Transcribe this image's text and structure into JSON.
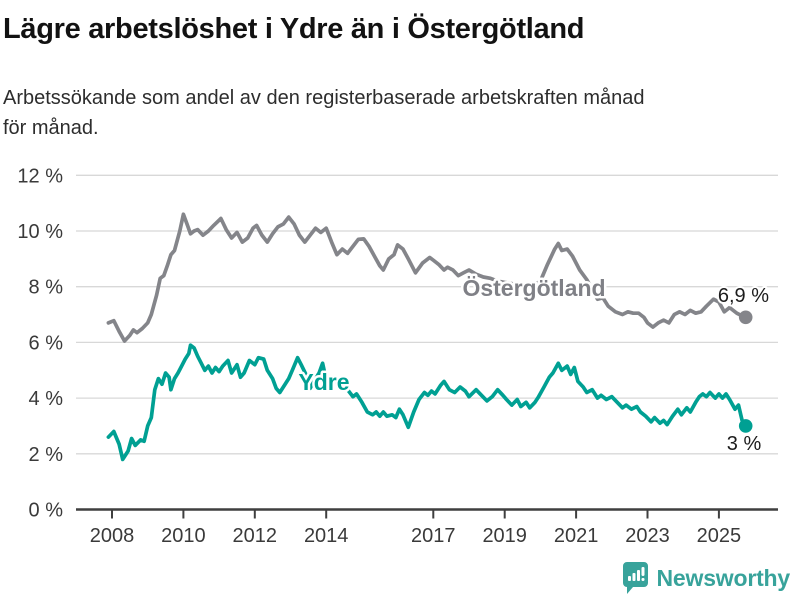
{
  "header": {
    "title": "Lägre arbetslöshet i Ydre än i Östergötland",
    "subtitle": "Arbetssökande som andel av den registerbaserade arbetskraften månad\nför månad."
  },
  "footer": {
    "brand": "Newsworthy"
  },
  "colors": {
    "ostergotland_line": "#84858a",
    "ydre_line": "#00a093",
    "grid": "#d8d8d8",
    "axis": "#3f3f3f",
    "brand_teal": "#38a39b"
  },
  "chart_data": {
    "type": "line",
    "title": "Lägre arbetslöshet i Ydre än i Östergötland",
    "subtitle": "Arbetssökande som andel av den registerbaserade arbetskraften månad för månad.",
    "unit": "%",
    "ylim": [
      0,
      12
    ],
    "xlim": [
      2007.9,
      2026.2
    ],
    "grid": "horizontal",
    "legend_position": "inline-labels",
    "y_ticks": [
      0,
      2,
      4,
      6,
      8,
      10,
      12
    ],
    "y_tick_suffix": " %",
    "x_ticks": [
      2008,
      2010,
      2012,
      2014,
      2017,
      2019,
      2021,
      2023,
      2025
    ],
    "series": [
      {
        "name": "Östergötland",
        "color": "#84858a",
        "end_label": "6,9 %",
        "end_value": 6.9,
        "points": [
          [
            2007.9,
            6.7
          ],
          [
            2008.05,
            6.78
          ],
          [
            2008.2,
            6.4
          ],
          [
            2008.35,
            6.05
          ],
          [
            2008.5,
            6.25
          ],
          [
            2008.6,
            6.45
          ],
          [
            2008.7,
            6.35
          ],
          [
            2008.85,
            6.5
          ],
          [
            2009.0,
            6.7
          ],
          [
            2009.1,
            7.0
          ],
          [
            2009.25,
            7.7
          ],
          [
            2009.35,
            8.3
          ],
          [
            2009.45,
            8.4
          ],
          [
            2009.55,
            8.75
          ],
          [
            2009.65,
            9.15
          ],
          [
            2009.75,
            9.3
          ],
          [
            2009.9,
            10.0
          ],
          [
            2010.0,
            10.6
          ],
          [
            2010.1,
            10.25
          ],
          [
            2010.2,
            9.9
          ],
          [
            2010.3,
            10.0
          ],
          [
            2010.4,
            10.05
          ],
          [
            2010.55,
            9.85
          ],
          [
            2010.7,
            10.0
          ],
          [
            2010.85,
            10.2
          ],
          [
            2011.05,
            10.45
          ],
          [
            2011.2,
            10.05
          ],
          [
            2011.35,
            9.75
          ],
          [
            2011.5,
            9.95
          ],
          [
            2011.65,
            9.6
          ],
          [
            2011.8,
            9.75
          ],
          [
            2011.95,
            10.1
          ],
          [
            2012.05,
            10.2
          ],
          [
            2012.2,
            9.85
          ],
          [
            2012.35,
            9.6
          ],
          [
            2012.5,
            9.9
          ],
          [
            2012.65,
            10.15
          ],
          [
            2012.8,
            10.25
          ],
          [
            2012.95,
            10.5
          ],
          [
            2013.1,
            10.25
          ],
          [
            2013.25,
            9.85
          ],
          [
            2013.4,
            9.6
          ],
          [
            2013.55,
            9.85
          ],
          [
            2013.7,
            10.1
          ],
          [
            2013.85,
            9.95
          ],
          [
            2014.0,
            10.1
          ],
          [
            2014.15,
            9.6
          ],
          [
            2014.3,
            9.15
          ],
          [
            2014.45,
            9.35
          ],
          [
            2014.6,
            9.2
          ],
          [
            2014.75,
            9.45
          ],
          [
            2014.9,
            9.7
          ],
          [
            2015.05,
            9.72
          ],
          [
            2015.2,
            9.45
          ],
          [
            2015.35,
            9.1
          ],
          [
            2015.5,
            8.75
          ],
          [
            2015.6,
            8.6
          ],
          [
            2015.75,
            9.0
          ],
          [
            2015.9,
            9.15
          ],
          [
            2016.0,
            9.5
          ],
          [
            2016.15,
            9.35
          ],
          [
            2016.3,
            9.0
          ],
          [
            2016.5,
            8.5
          ],
          [
            2016.7,
            8.85
          ],
          [
            2016.9,
            9.05
          ],
          [
            2017.0,
            8.95
          ],
          [
            2017.15,
            8.8
          ],
          [
            2017.3,
            8.6
          ],
          [
            2017.4,
            8.7
          ],
          [
            2017.55,
            8.6
          ],
          [
            2017.7,
            8.4
          ],
          [
            2017.85,
            8.5
          ],
          [
            2018.0,
            8.6
          ],
          [
            2018.2,
            8.45
          ],
          [
            2018.4,
            8.35
          ],
          [
            2018.6,
            8.3
          ],
          [
            2018.8,
            8.2
          ],
          [
            2019.0,
            8.15
          ],
          [
            2019.25,
            8.1
          ],
          [
            2019.5,
            8.05
          ],
          [
            2019.75,
            8.0
          ],
          [
            2020.0,
            8.2
          ],
          [
            2020.2,
            8.8
          ],
          [
            2020.4,
            9.35
          ],
          [
            2020.5,
            9.55
          ],
          [
            2020.6,
            9.3
          ],
          [
            2020.75,
            9.35
          ],
          [
            2020.9,
            9.1
          ],
          [
            2021.1,
            8.6
          ],
          [
            2021.3,
            8.25
          ],
          [
            2021.5,
            7.8
          ],
          [
            2021.6,
            7.55
          ],
          [
            2021.75,
            7.6
          ],
          [
            2021.9,
            7.3
          ],
          [
            2022.1,
            7.1
          ],
          [
            2022.3,
            7.0
          ],
          [
            2022.45,
            7.1
          ],
          [
            2022.6,
            7.05
          ],
          [
            2022.75,
            7.05
          ],
          [
            2022.9,
            6.9
          ],
          [
            2023.0,
            6.7
          ],
          [
            2023.15,
            6.55
          ],
          [
            2023.3,
            6.7
          ],
          [
            2023.45,
            6.8
          ],
          [
            2023.6,
            6.7
          ],
          [
            2023.75,
            7.0
          ],
          [
            2023.9,
            7.1
          ],
          [
            2024.05,
            7.0
          ],
          [
            2024.2,
            7.15
          ],
          [
            2024.35,
            7.05
          ],
          [
            2024.5,
            7.1
          ],
          [
            2024.65,
            7.3
          ],
          [
            2024.85,
            7.55
          ],
          [
            2025.0,
            7.45
          ],
          [
            2025.15,
            7.1
          ],
          [
            2025.3,
            7.25
          ],
          [
            2025.5,
            7.05
          ],
          [
            2025.65,
            6.95
          ],
          [
            2025.75,
            6.9
          ]
        ]
      },
      {
        "name": "Ydre",
        "color": "#00a093",
        "end_label": "3 %",
        "end_value": 3.0,
        "points": [
          [
            2007.9,
            2.6
          ],
          [
            2008.05,
            2.8
          ],
          [
            2008.2,
            2.35
          ],
          [
            2008.3,
            1.8
          ],
          [
            2008.45,
            2.1
          ],
          [
            2008.55,
            2.55
          ],
          [
            2008.65,
            2.3
          ],
          [
            2008.8,
            2.5
          ],
          [
            2008.9,
            2.45
          ],
          [
            2009.0,
            3.0
          ],
          [
            2009.1,
            3.3
          ],
          [
            2009.2,
            4.3
          ],
          [
            2009.3,
            4.7
          ],
          [
            2009.4,
            4.5
          ],
          [
            2009.5,
            4.9
          ],
          [
            2009.6,
            4.75
          ],
          [
            2009.65,
            4.3
          ],
          [
            2009.75,
            4.7
          ],
          [
            2009.85,
            4.9
          ],
          [
            2009.95,
            5.15
          ],
          [
            2010.05,
            5.4
          ],
          [
            2010.15,
            5.6
          ],
          [
            2010.2,
            5.9
          ],
          [
            2010.3,
            5.8
          ],
          [
            2010.4,
            5.5
          ],
          [
            2010.5,
            5.25
          ],
          [
            2010.6,
            5.0
          ],
          [
            2010.7,
            5.15
          ],
          [
            2010.8,
            4.9
          ],
          [
            2010.9,
            5.1
          ],
          [
            2011.0,
            4.95
          ],
          [
            2011.1,
            5.15
          ],
          [
            2011.25,
            5.35
          ],
          [
            2011.35,
            4.9
          ],
          [
            2011.5,
            5.2
          ],
          [
            2011.6,
            4.75
          ],
          [
            2011.7,
            4.9
          ],
          [
            2011.85,
            5.35
          ],
          [
            2012.0,
            5.2
          ],
          [
            2012.1,
            5.45
          ],
          [
            2012.25,
            5.4
          ],
          [
            2012.35,
            5.0
          ],
          [
            2012.5,
            4.7
          ],
          [
            2012.6,
            4.35
          ],
          [
            2012.7,
            4.2
          ],
          [
            2012.85,
            4.5
          ],
          [
            2012.95,
            4.7
          ],
          [
            2013.05,
            5.0
          ],
          [
            2013.2,
            5.45
          ],
          [
            2013.3,
            5.2
          ],
          [
            2013.45,
            4.8
          ],
          [
            2013.55,
            4.35
          ],
          [
            2013.65,
            4.6
          ],
          [
            2013.8,
            4.9
          ],
          [
            2013.9,
            5.25
          ],
          [
            2014.0,
            4.65
          ],
          [
            2014.1,
            4.4
          ],
          [
            2014.25,
            4.65
          ],
          [
            2014.4,
            4.4
          ],
          [
            2014.5,
            4.6
          ],
          [
            2014.6,
            4.3
          ],
          [
            2014.75,
            4.05
          ],
          [
            2014.85,
            4.15
          ],
          [
            2015.0,
            3.85
          ],
          [
            2015.15,
            3.5
          ],
          [
            2015.3,
            3.4
          ],
          [
            2015.4,
            3.5
          ],
          [
            2015.5,
            3.35
          ],
          [
            2015.6,
            3.5
          ],
          [
            2015.7,
            3.35
          ],
          [
            2015.85,
            3.4
          ],
          [
            2015.95,
            3.3
          ],
          [
            2016.05,
            3.6
          ],
          [
            2016.15,
            3.4
          ],
          [
            2016.3,
            2.95
          ],
          [
            2016.45,
            3.5
          ],
          [
            2016.6,
            3.95
          ],
          [
            2016.75,
            4.2
          ],
          [
            2016.85,
            4.1
          ],
          [
            2016.95,
            4.25
          ],
          [
            2017.05,
            4.15
          ],
          [
            2017.2,
            4.45
          ],
          [
            2017.3,
            4.6
          ],
          [
            2017.45,
            4.3
          ],
          [
            2017.6,
            4.2
          ],
          [
            2017.75,
            4.4
          ],
          [
            2017.9,
            4.25
          ],
          [
            2018.0,
            4.05
          ],
          [
            2018.2,
            4.3
          ],
          [
            2018.35,
            4.1
          ],
          [
            2018.5,
            3.9
          ],
          [
            2018.65,
            4.05
          ],
          [
            2018.8,
            4.3
          ],
          [
            2018.95,
            4.1
          ],
          [
            2019.05,
            3.95
          ],
          [
            2019.2,
            3.75
          ],
          [
            2019.35,
            3.95
          ],
          [
            2019.45,
            3.7
          ],
          [
            2019.6,
            3.85
          ],
          [
            2019.7,
            3.65
          ],
          [
            2019.85,
            3.85
          ],
          [
            2019.95,
            4.05
          ],
          [
            2020.1,
            4.4
          ],
          [
            2020.25,
            4.75
          ],
          [
            2020.35,
            4.9
          ],
          [
            2020.5,
            5.25
          ],
          [
            2020.6,
            5.0
          ],
          [
            2020.75,
            5.15
          ],
          [
            2020.85,
            4.85
          ],
          [
            2020.95,
            5.1
          ],
          [
            2021.05,
            4.6
          ],
          [
            2021.2,
            4.4
          ],
          [
            2021.3,
            4.2
          ],
          [
            2021.45,
            4.3
          ],
          [
            2021.6,
            4.0
          ],
          [
            2021.7,
            4.1
          ],
          [
            2021.85,
            3.95
          ],
          [
            2022.0,
            4.05
          ],
          [
            2022.15,
            3.85
          ],
          [
            2022.3,
            3.65
          ],
          [
            2022.4,
            3.75
          ],
          [
            2022.55,
            3.6
          ],
          [
            2022.7,
            3.7
          ],
          [
            2022.8,
            3.5
          ],
          [
            2022.95,
            3.35
          ],
          [
            2023.1,
            3.15
          ],
          [
            2023.2,
            3.3
          ],
          [
            2023.35,
            3.1
          ],
          [
            2023.45,
            3.2
          ],
          [
            2023.55,
            3.05
          ],
          [
            2023.7,
            3.35
          ],
          [
            2023.85,
            3.6
          ],
          [
            2023.95,
            3.4
          ],
          [
            2024.1,
            3.65
          ],
          [
            2024.2,
            3.5
          ],
          [
            2024.35,
            3.85
          ],
          [
            2024.45,
            4.05
          ],
          [
            2024.55,
            4.15
          ],
          [
            2024.65,
            4.05
          ],
          [
            2024.75,
            4.2
          ],
          [
            2024.9,
            4.0
          ],
          [
            2025.0,
            4.15
          ],
          [
            2025.1,
            4.0
          ],
          [
            2025.2,
            4.15
          ],
          [
            2025.3,
            3.95
          ],
          [
            2025.45,
            3.6
          ],
          [
            2025.55,
            3.75
          ],
          [
            2025.65,
            3.2
          ],
          [
            2025.75,
            3.0
          ]
        ]
      }
    ]
  }
}
